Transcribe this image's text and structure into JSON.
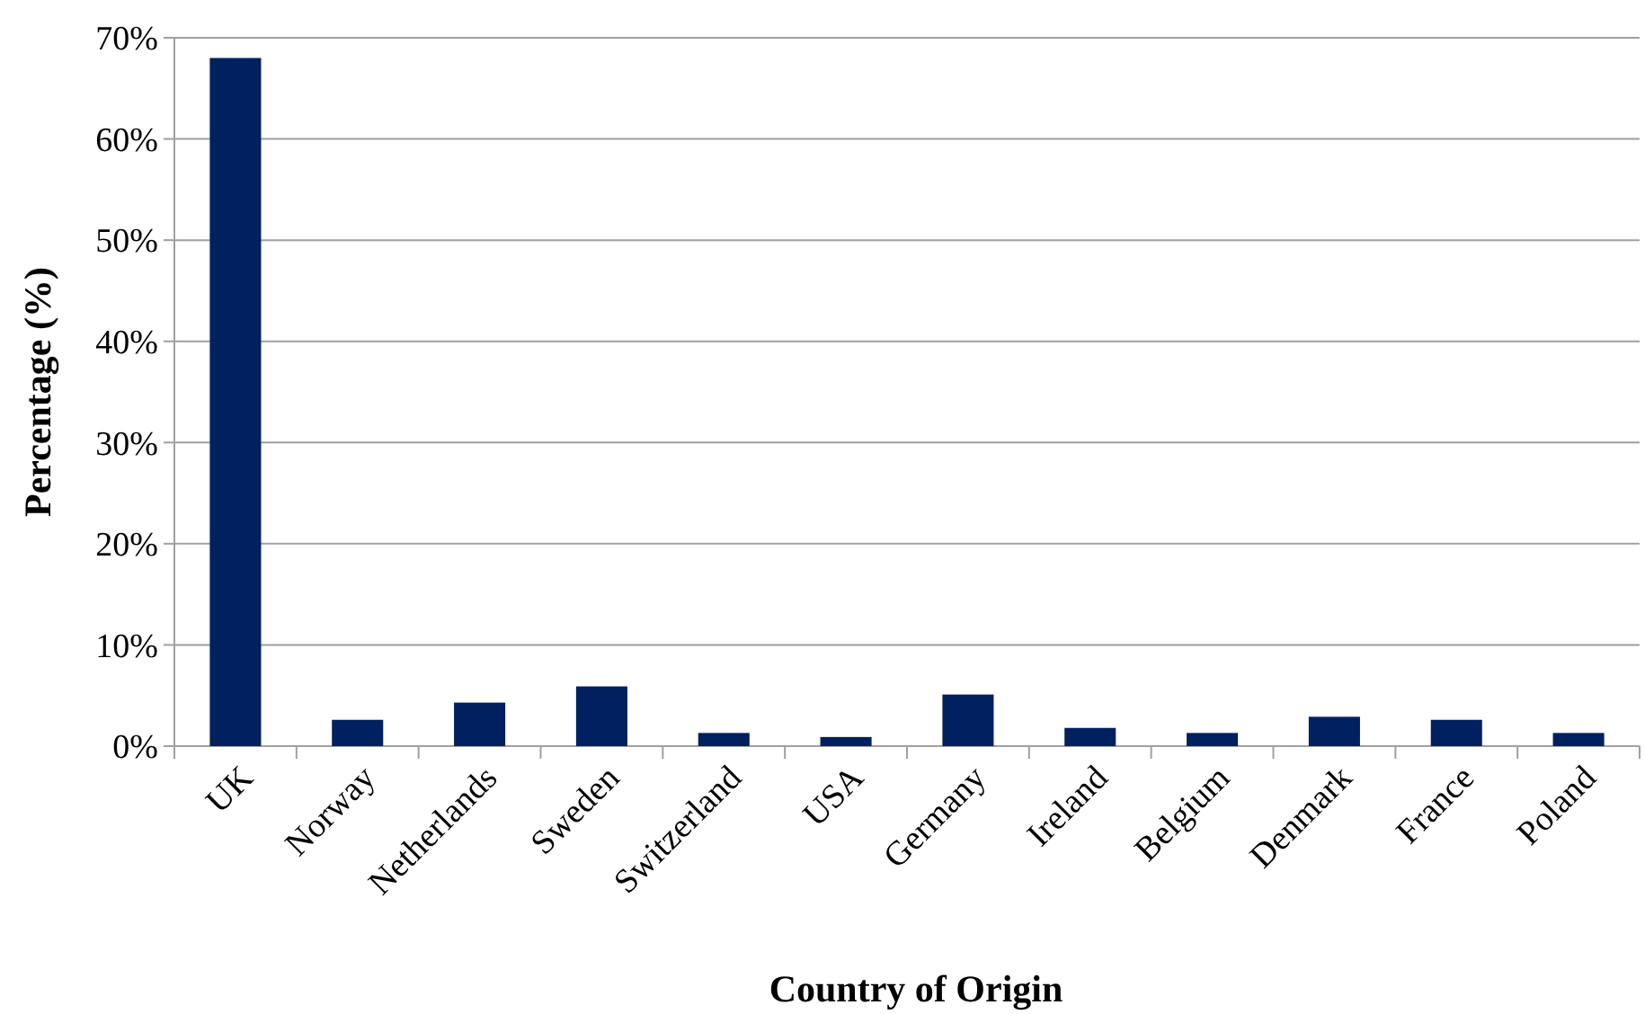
{
  "chart_data": {
    "type": "bar",
    "xlabel": "Country of Origin",
    "ylabel": "Percentage (%)",
    "categories": [
      "UK",
      "Norway",
      "Netherlands",
      "Sweden",
      "Switzerland",
      "USA",
      "Germany",
      "Ireland",
      "Belgium",
      "Denmark",
      "France",
      "Poland"
    ],
    "values": [
      68,
      2.6,
      4.3,
      5.9,
      1.3,
      0.9,
      5.1,
      1.8,
      1.3,
      2.9,
      2.6,
      1.3
    ],
    "color": "#002060",
    "ylim": [
      0,
      70
    ],
    "yticks": [
      {
        "value": 0,
        "label": "0%"
      },
      {
        "value": 10,
        "label": "10%"
      },
      {
        "value": 20,
        "label": "20%"
      },
      {
        "value": 30,
        "label": "30%"
      },
      {
        "value": 40,
        "label": "40%"
      },
      {
        "value": 50,
        "label": "50%"
      },
      {
        "value": 60,
        "label": "60%"
      },
      {
        "value": 70,
        "label": "70%"
      }
    ],
    "grid": "y"
  }
}
